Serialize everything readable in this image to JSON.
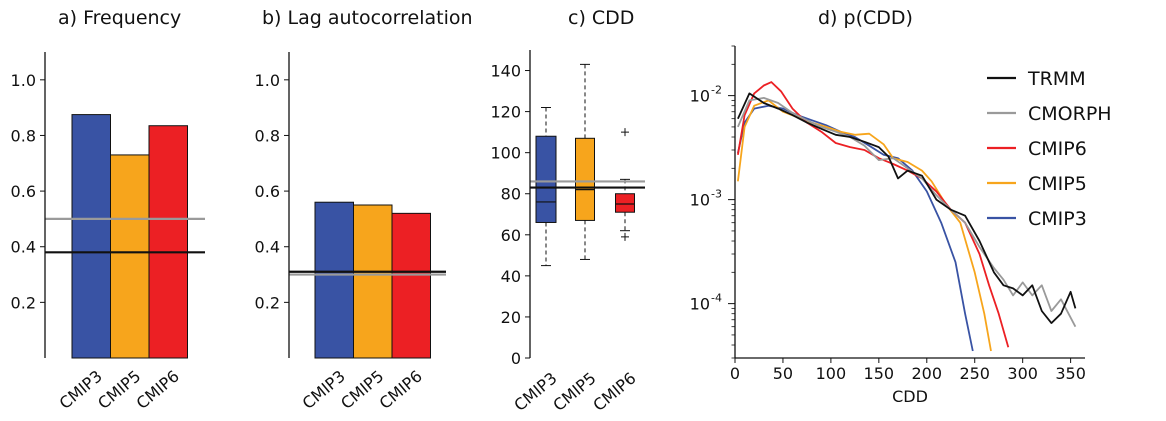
{
  "colors": {
    "CMIP3": "#3953a4",
    "CMIP5": "#f7a51c",
    "CMIP6": "#ec2024",
    "TRMM": "#111111",
    "CMORPH": "#9a9a9a"
  },
  "chart_data": [
    {
      "type": "bar",
      "title": "a)    Frequency",
      "categories": [
        "CMIP3",
        "CMIP5",
        "CMIP6"
      ],
      "values": [
        0.875,
        0.73,
        0.835
      ],
      "ylim": [
        0,
        1.1
      ],
      "yticks": [
        "0.2",
        "0.4",
        "0.6",
        "0.8",
        "1.0"
      ],
      "reference_lines": [
        {
          "name": "TRMM",
          "value": 0.38
        },
        {
          "name": "CMORPH",
          "value": 0.5
        }
      ]
    },
    {
      "type": "bar",
      "title": "b)  Lag autocorrelation",
      "categories": [
        "CMIP3",
        "CMIP5",
        "CMIP6"
      ],
      "values": [
        0.56,
        0.55,
        0.52
      ],
      "ylim": [
        0,
        1.1
      ],
      "yticks": [
        "0.2",
        "0.4",
        "0.6",
        "0.8",
        "1.0"
      ],
      "reference_lines": [
        {
          "name": "TRMM",
          "value": 0.31
        },
        {
          "name": "CMORPH",
          "value": 0.3
        }
      ]
    },
    {
      "type": "box",
      "title": "c)    CDD",
      "categories": [
        "CMIP3",
        "CMIP5",
        "CMIP6"
      ],
      "boxes": [
        {
          "whisker_low": 45,
          "q1": 66,
          "median": 76,
          "q3": 108,
          "whisker_high": 122,
          "outliers": []
        },
        {
          "whisker_low": 48,
          "q1": 67,
          "median": 82,
          "q3": 107,
          "whisker_high": 143,
          "outliers": []
        },
        {
          "whisker_low": 62,
          "q1": 71,
          "median": 75,
          "q3": 80,
          "whisker_high": 87,
          "outliers": [
            110,
            59
          ]
        }
      ],
      "ylim": [
        0,
        150
      ],
      "yticks": [
        "0",
        "20",
        "40",
        "60",
        "80",
        "100",
        "120",
        "140"
      ],
      "reference_lines": [
        {
          "name": "TRMM",
          "value": 83
        },
        {
          "name": "CMORPH",
          "value": 86
        }
      ]
    },
    {
      "type": "line",
      "title": "d)  p(CDD)",
      "xlabel": "CDD",
      "xlim": [
        0,
        365
      ],
      "xticks": [
        "0",
        "50",
        "100",
        "150",
        "200",
        "250",
        "300",
        "350"
      ],
      "yscale": "log",
      "ylim": [
        3e-05,
        0.03
      ],
      "ytick_base": [
        "10",
        "10",
        "10"
      ],
      "ytick_exp": [
        "-2",
        "-3",
        "-4"
      ],
      "legend": {
        "placement": "top-right",
        "entries": [
          "TRMM",
          "CMORPH",
          "CMIP6",
          "CMIP5",
          "CMIP3"
        ]
      },
      "series": [
        {
          "name": "TRMM",
          "x": [
            3,
            15,
            30,
            45,
            60,
            75,
            90,
            105,
            120,
            135,
            150,
            160,
            170,
            180,
            195,
            210,
            225,
            240,
            255,
            270,
            280,
            290,
            300,
            310,
            320,
            330,
            340,
            350,
            355
          ],
          "y": [
            0.006,
            0.0105,
            0.0085,
            0.0075,
            0.0065,
            0.0055,
            0.0048,
            0.0042,
            0.004,
            0.0036,
            0.0032,
            0.0026,
            0.0016,
            0.0019,
            0.0017,
            0.001,
            0.0008,
            0.0007,
            0.0004,
            0.0002,
            0.00015,
            0.00014,
            0.00012,
            0.00015,
            8.5e-05,
            6.5e-05,
            8e-05,
            0.00013,
            9e-05
          ]
        },
        {
          "name": "CMORPH",
          "x": [
            3,
            15,
            30,
            45,
            60,
            75,
            90,
            105,
            120,
            135,
            150,
            165,
            180,
            195,
            210,
            225,
            240,
            255,
            270,
            280,
            290,
            300,
            310,
            320,
            330,
            340,
            355
          ],
          "y": [
            0.005,
            0.009,
            0.0095,
            0.0085,
            0.0068,
            0.0058,
            0.005,
            0.0045,
            0.004,
            0.0033,
            0.0024,
            0.0025,
            0.002,
            0.0016,
            0.0011,
            0.0008,
            0.0006,
            0.00035,
            0.00022,
            0.00017,
            0.00012,
            0.00016,
            0.00012,
            0.00015,
            8.5e-05,
            0.00011,
            6e-05
          ]
        },
        {
          "name": "CMIP6",
          "x": [
            3,
            10,
            20,
            30,
            38,
            48,
            60,
            75,
            90,
            105,
            120,
            135,
            150,
            165,
            180,
            195,
            210,
            225,
            240,
            255,
            265,
            275,
            285
          ],
          "y": [
            0.0027,
            0.0065,
            0.0105,
            0.0125,
            0.0135,
            0.011,
            0.0075,
            0.0055,
            0.0045,
            0.0035,
            0.0032,
            0.003,
            0.0025,
            0.0022,
            0.0019,
            0.0016,
            0.0012,
            0.0008,
            0.0006,
            0.0003,
            0.00015,
            8e-05,
            3.8e-05
          ]
        },
        {
          "name": "CMIP5",
          "x": [
            3,
            10,
            20,
            35,
            50,
            65,
            80,
            95,
            110,
            125,
            140,
            155,
            165,
            180,
            195,
            205,
            220,
            235,
            250,
            260,
            267
          ],
          "y": [
            0.0015,
            0.005,
            0.008,
            0.009,
            0.007,
            0.0062,
            0.0055,
            0.005,
            0.0045,
            0.0042,
            0.0043,
            0.0034,
            0.0025,
            0.0023,
            0.0019,
            0.0015,
            0.0009,
            0.0006,
            0.0002,
            8e-05,
            3.5e-05
          ]
        },
        {
          "name": "CMIP3",
          "x": [
            3,
            10,
            20,
            35,
            50,
            65,
            80,
            95,
            110,
            125,
            140,
            155,
            170,
            185,
            200,
            215,
            230,
            240,
            248
          ],
          "y": [
            0.0028,
            0.0055,
            0.0075,
            0.008,
            0.0075,
            0.0065,
            0.0058,
            0.0052,
            0.0045,
            0.004,
            0.0033,
            0.0027,
            0.0025,
            0.0019,
            0.0012,
            0.0006,
            0.00025,
            8e-05,
            3.5e-05
          ]
        }
      ]
    }
  ]
}
